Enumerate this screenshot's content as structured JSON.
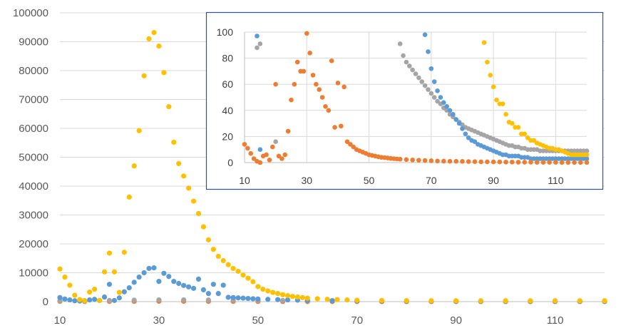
{
  "chart_data": [
    {
      "id": "main",
      "type": "scatter",
      "title": "",
      "xlabel": "",
      "ylabel": "",
      "xlim": [
        10,
        120
      ],
      "ylim": [
        0,
        100000
      ],
      "x_ticks": [
        10,
        30,
        50,
        70,
        90,
        110
      ],
      "y_ticks": [
        0,
        10000,
        20000,
        30000,
        40000,
        50000,
        60000,
        70000,
        80000,
        90000,
        100000
      ],
      "grid": "horizontal",
      "legend": "none",
      "series": [
        {
          "name": "Series 1",
          "color": "#ffc000",
          "x": [
            10,
            11,
            12,
            13,
            14,
            15,
            16,
            17,
            18,
            19,
            20,
            21,
            22,
            23,
            24,
            25,
            26,
            27,
            28,
            29,
            30,
            31,
            32,
            33,
            34,
            35,
            36,
            37,
            38,
            39,
            40,
            41,
            42,
            43,
            44,
            45,
            46,
            47,
            48,
            49,
            50,
            51,
            52,
            53,
            54,
            55,
            56,
            57,
            58,
            59,
            60,
            62,
            64,
            66,
            68,
            70,
            75,
            80,
            85,
            90,
            95,
            100,
            105,
            110,
            115,
            120
          ],
          "y": [
            11300,
            8500,
            5700,
            2200,
            700,
            300,
            3300,
            4300,
            400,
            10300,
            16800,
            10300,
            3200,
            17100,
            36200,
            47000,
            59200,
            78200,
            91000,
            93200,
            88500,
            79300,
            67500,
            55200,
            47800,
            43500,
            39300,
            34800,
            30500,
            25900,
            21400,
            18100,
            15700,
            14200,
            12800,
            11500,
            10500,
            9200,
            8100,
            6900,
            5200,
            4300,
            3700,
            3200,
            2800,
            2400,
            2100,
            1800,
            1600,
            1400,
            1200,
            1000,
            800,
            700,
            600,
            500,
            400,
            350,
            300,
            300,
            300,
            300,
            300,
            300,
            300,
            300
          ]
        },
        {
          "name": "Series 2",
          "color": "#5b9bd5",
          "x": [
            10,
            11,
            12,
            13,
            14,
            15,
            16,
            17,
            18,
            19,
            20,
            21,
            22,
            23,
            24,
            25,
            26,
            27,
            28,
            29,
            30,
            31,
            32,
            33,
            34,
            35,
            36,
            37,
            38,
            39,
            40,
            41,
            42,
            43,
            44,
            45,
            46,
            47,
            48,
            49,
            50,
            52,
            54,
            56,
            58,
            60,
            65,
            70,
            75,
            80,
            85,
            90,
            95,
            100,
            105,
            110,
            115,
            120
          ],
          "y": [
            1400,
            900,
            600,
            300,
            200,
            300,
            600,
            800,
            400,
            1600,
            6000,
            400,
            1300,
            3400,
            4800,
            6700,
            8500,
            10000,
            11500,
            11700,
            7000,
            9800,
            8700,
            7000,
            6300,
            5600,
            5100,
            4600,
            7800,
            4100,
            2800,
            6000,
            2800,
            5700,
            1500,
            1400,
            1300,
            1200,
            1100,
            1000,
            900,
            800,
            700,
            600,
            500,
            400,
            300,
            250,
            200,
            150,
            150,
            100,
            100,
            100,
            100,
            100,
            100,
            100
          ]
        },
        {
          "name": "Series 3",
          "color": "#a5a5a5",
          "x": [
            10,
            15,
            20,
            25,
            30,
            35,
            40,
            45,
            50,
            55,
            60,
            65,
            70,
            75,
            80,
            85,
            90,
            95,
            100,
            105,
            110,
            115,
            120
          ],
          "y": [
            300,
            300,
            400,
            500,
            600,
            600,
            550,
            500,
            450,
            400,
            380,
            350,
            330,
            300,
            280,
            260,
            250,
            240,
            230,
            220,
            210,
            200,
            200
          ]
        },
        {
          "name": "Series 4",
          "color": "#ed7d31",
          "x": [
            10,
            15,
            20,
            25,
            30,
            35,
            40,
            45,
            50,
            55,
            60,
            65,
            70,
            75,
            80,
            85,
            90,
            95,
            100,
            105,
            110,
            115,
            120
          ],
          "y": [
            100,
            50,
            80,
            100,
            150,
            120,
            100,
            80,
            60,
            50,
            40,
            30,
            30,
            20,
            20,
            20,
            20,
            20,
            10,
            10,
            10,
            10,
            10
          ]
        }
      ]
    },
    {
      "id": "inset",
      "type": "scatter",
      "title": "",
      "xlabel": "",
      "ylabel": "",
      "xlim": [
        10,
        120
      ],
      "ylim": [
        0,
        100
      ],
      "x_ticks": [
        10,
        30,
        50,
        70,
        90,
        110
      ],
      "y_ticks": [
        0,
        20,
        40,
        60,
        80,
        100
      ],
      "grid": "both",
      "legend": "none",
      "series": [
        {
          "name": "Series 1",
          "color": "#ffc000",
          "x": [
            87,
            88,
            89,
            90,
            91,
            92,
            93,
            94,
            95,
            96,
            97,
            98,
            99,
            100,
            101,
            102,
            103,
            104,
            105,
            106,
            107,
            108,
            109,
            110,
            111,
            112,
            113,
            114,
            115,
            116,
            117,
            118,
            119,
            120
          ],
          "y": [
            92,
            77,
            67,
            58,
            48,
            45,
            45,
            37,
            31,
            30,
            27,
            27,
            22,
            22,
            19,
            17,
            17,
            15,
            14,
            13,
            12,
            11,
            11,
            10,
            10,
            9,
            8,
            7,
            6,
            6,
            6,
            6,
            6,
            6
          ]
        },
        {
          "name": "Series 2",
          "color": "#5b9bd5",
          "x": [
            14,
            15,
            68,
            69,
            70,
            71,
            72,
            73,
            74,
            75,
            76,
            77,
            78,
            79,
            80,
            81,
            82,
            83,
            84,
            85,
            86,
            87,
            88,
            89,
            90,
            91,
            92,
            93,
            94,
            95,
            96,
            97,
            98,
            99,
            100,
            101,
            102,
            103,
            104,
            105,
            106,
            107,
            108,
            109,
            110,
            111,
            112,
            113,
            114,
            115,
            116,
            117,
            118,
            119,
            120
          ],
          "y": [
            97,
            10,
            98,
            85,
            72,
            62,
            55,
            50,
            46,
            43,
            40,
            37,
            33,
            30,
            26,
            22,
            19,
            17,
            16,
            14,
            13,
            12,
            11,
            10,
            9,
            8,
            7,
            6,
            6,
            5,
            5,
            5,
            5,
            4,
            4,
            4,
            3,
            3,
            3,
            3,
            3,
            3,
            3,
            3,
            3,
            3,
            3,
            3,
            3,
            3,
            3,
            3,
            3,
            3,
            3
          ]
        },
        {
          "name": "Series 3",
          "color": "#a5a5a5",
          "x": [
            14,
            15,
            20,
            60,
            61,
            62,
            63,
            64,
            65,
            66,
            67,
            68,
            69,
            70,
            71,
            72,
            73,
            74,
            75,
            76,
            77,
            78,
            79,
            80,
            81,
            82,
            83,
            84,
            85,
            86,
            87,
            88,
            89,
            90,
            91,
            92,
            93,
            94,
            95,
            96,
            97,
            98,
            99,
            100,
            101,
            102,
            103,
            104,
            105,
            106,
            107,
            108,
            109,
            110,
            111,
            112,
            113,
            114,
            115,
            116,
            117,
            118,
            119,
            120
          ],
          "y": [
            88,
            91,
            16,
            91,
            82,
            77,
            74,
            71,
            68,
            65,
            62,
            59,
            56,
            53,
            50,
            47,
            45,
            42,
            40,
            37,
            35,
            33,
            31,
            29,
            27,
            26,
            25,
            24,
            23,
            22,
            21,
            20,
            19,
            18,
            17,
            16,
            15,
            14,
            13,
            13,
            12,
            12,
            11,
            11,
            10,
            10,
            10,
            10,
            9,
            9,
            9,
            9,
            9,
            9,
            9,
            9,
            9,
            9,
            9,
            9,
            9,
            9,
            9,
            9
          ]
        },
        {
          "name": "Series 4",
          "color": "#ed7d31",
          "x": [
            10,
            11,
            12,
            13,
            14,
            15,
            16,
            17,
            18,
            19,
            20,
            21,
            22,
            23,
            24,
            25,
            26,
            27,
            28,
            29,
            30,
            31,
            32,
            33,
            34,
            35,
            36,
            37,
            38,
            39,
            40,
            41,
            42,
            43,
            44,
            45,
            46,
            47,
            48,
            49,
            50,
            51,
            52,
            53,
            54,
            55,
            56,
            57,
            58,
            59,
            60,
            62,
            64,
            66,
            68,
            70,
            72,
            74,
            76,
            78,
            80,
            82,
            84,
            86,
            88,
            90,
            92,
            94,
            96,
            98,
            100,
            102,
            104,
            106,
            108,
            110,
            112,
            114,
            116,
            118,
            120
          ],
          "y": [
            14,
            11,
            7,
            3,
            1,
            0,
            5,
            6,
            2,
            12,
            60,
            5,
            3,
            6,
            24,
            48,
            60,
            77,
            70,
            70,
            99,
            84,
            67,
            60,
            56,
            50,
            43,
            40,
            78,
            27,
            61,
            28,
            58,
            16,
            14,
            12,
            10,
            9,
            8,
            7,
            6,
            5.5,
            5,
            4.5,
            4,
            3.8,
            3.5,
            3.2,
            3,
            2.8,
            2.6,
            2.3,
            2,
            1.8,
            1.6,
            1.4,
            1.2,
            1.1,
            1,
            1,
            0.9,
            0.8,
            0.7,
            0.6,
            0.6,
            0.5,
            0.5,
            0.4,
            0.4,
            0.3,
            0.3,
            0.3,
            0.2,
            0.2,
            0.2,
            0.2,
            0.1,
            0.1,
            0.1,
            0.1,
            0.1
          ]
        }
      ]
    }
  ]
}
